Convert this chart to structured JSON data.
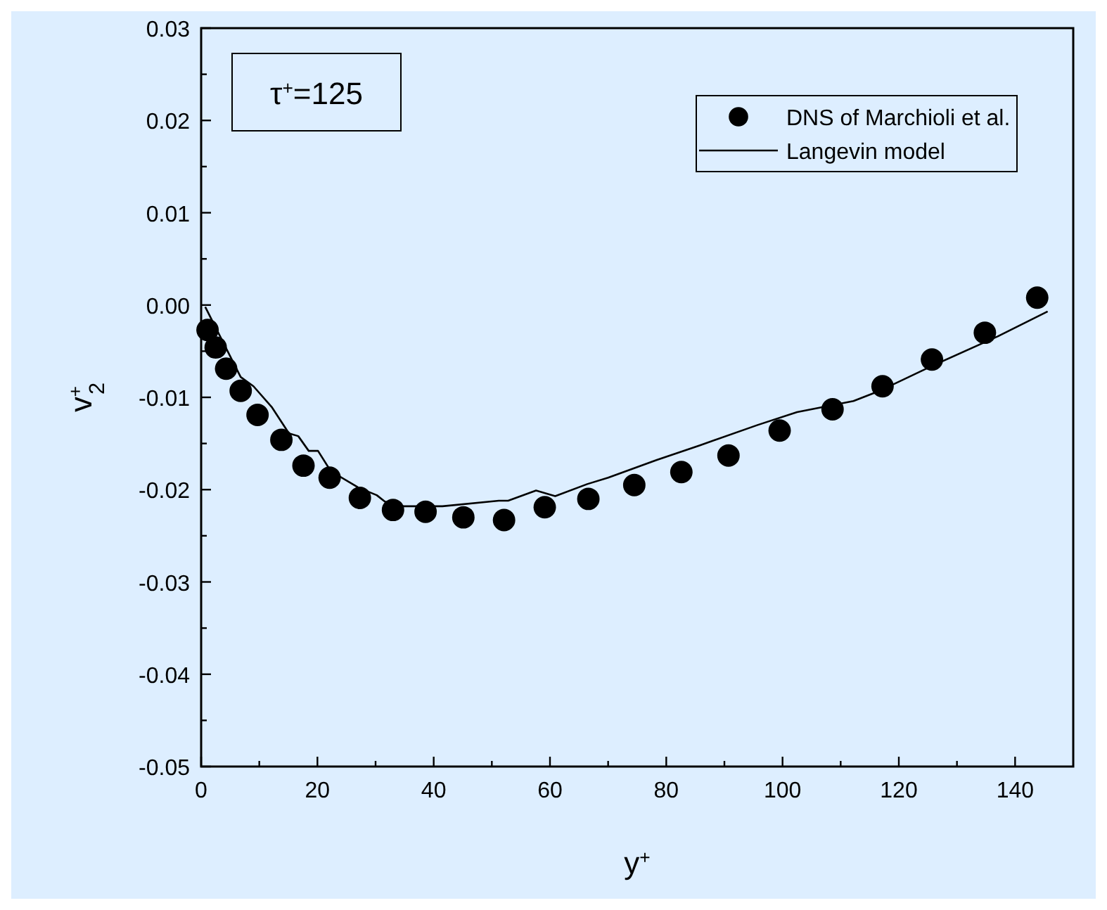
{
  "chart_data": {
    "type": "scatter",
    "xlabel": "y$^{+}$",
    "ylabel": "v$^{+}$$_{2}$",
    "annotations": [
      "τ$^{+}$=125"
    ],
    "xlim": [
      0,
      150
    ],
    "ylim": [
      -0.05,
      0.03
    ],
    "xticks": [
      0,
      {
        "value": 10,
        "label": null
      },
      20,
      {
        "value": 30,
        "label": null
      },
      40,
      {
        "value": 50,
        "label": null
      },
      60,
      {
        "value": 70,
        "label": null
      },
      80,
      {
        "value": 90,
        "label": null
      },
      100,
      {
        "value": 110,
        "label": null
      },
      120,
      {
        "value": 130,
        "label": null
      },
      140
    ],
    "yticks": [
      {
        "value": -0.05,
        "label": "-0.05"
      },
      {
        "value": -0.045,
        "label": null
      },
      {
        "value": -0.04,
        "label": "-0.04"
      },
      {
        "value": -0.035,
        "label": null
      },
      {
        "value": -0.03,
        "label": "-0.03"
      },
      {
        "value": -0.025,
        "label": null
      },
      {
        "value": -0.02,
        "label": "-0.02"
      },
      {
        "value": -0.015,
        "label": null
      },
      {
        "value": -0.01,
        "label": "-0.01"
      },
      {
        "value": -0.005,
        "label": null
      },
      {
        "value": 0,
        "label": "0.00"
      },
      {
        "value": 0.005,
        "label": null
      },
      {
        "value": 0.01,
        "label": "0.01"
      },
      {
        "value": 0.015,
        "label": null
      },
      {
        "value": 0.02,
        "label": "0.02"
      },
      {
        "value": 0.025,
        "label": null
      },
      {
        "value": 0.03,
        "label": "0.03"
      }
    ],
    "grid": false,
    "legend": "top right",
    "series": [
      {
        "name": "DNS of Marchioli et al.",
        "marker": "circle",
        "color": "#000000",
        "x": [
          1.1,
          2.5,
          4.3,
          6.8,
          9.7,
          13.8,
          17.6,
          22.1,
          27.3,
          33.0,
          38.6,
          45.1,
          52.1,
          59.1,
          66.6,
          74.5,
          82.6,
          90.7,
          99.5,
          108.6,
          117.2,
          125.7,
          134.8,
          143.8
        ],
        "values": [
          -0.0027,
          -0.0046,
          -0.0069,
          -0.0093,
          -0.0119,
          -0.0146,
          -0.0174,
          -0.0187,
          -0.0209,
          -0.0222,
          -0.0224,
          -0.023,
          -0.0233,
          -0.0219,
          -0.021,
          -0.0195,
          -0.0181,
          -0.0163,
          -0.0136,
          -0.0113,
          -0.0088,
          -0.0059,
          -0.003,
          0.0008
        ]
      },
      {
        "name": "Langevin model",
        "type": "line",
        "marker": "none",
        "line_style": "solid",
        "color": "#000000",
        "x": [
          0.7,
          6.8,
          9,
          12.2,
          15.1,
          16.7,
          18.5,
          20.1,
          22.3,
          27.1,
          30.2,
          31.6,
          34.8,
          41.5,
          51.2,
          52.8,
          57.6,
          60.9,
          66.4,
          70,
          78.3,
          85.8,
          95.7,
          102.5,
          112.2,
          116.7,
          125.7,
          137,
          145.6
        ],
        "values": [
          -0.0002,
          -0.0078,
          -0.0088,
          -0.0111,
          -0.0139,
          -0.0142,
          -0.0158,
          -0.0158,
          -0.018,
          -0.0198,
          -0.0206,
          -0.0213,
          -0.0218,
          -0.0218,
          -0.0212,
          -0.0212,
          -0.0201,
          -0.0207,
          -0.0194,
          -0.0187,
          -0.0168,
          -0.0152,
          -0.013,
          -0.0116,
          -0.0104,
          -0.0093,
          -0.0066,
          -0.0034,
          -0.0007
        ]
      }
    ]
  }
}
